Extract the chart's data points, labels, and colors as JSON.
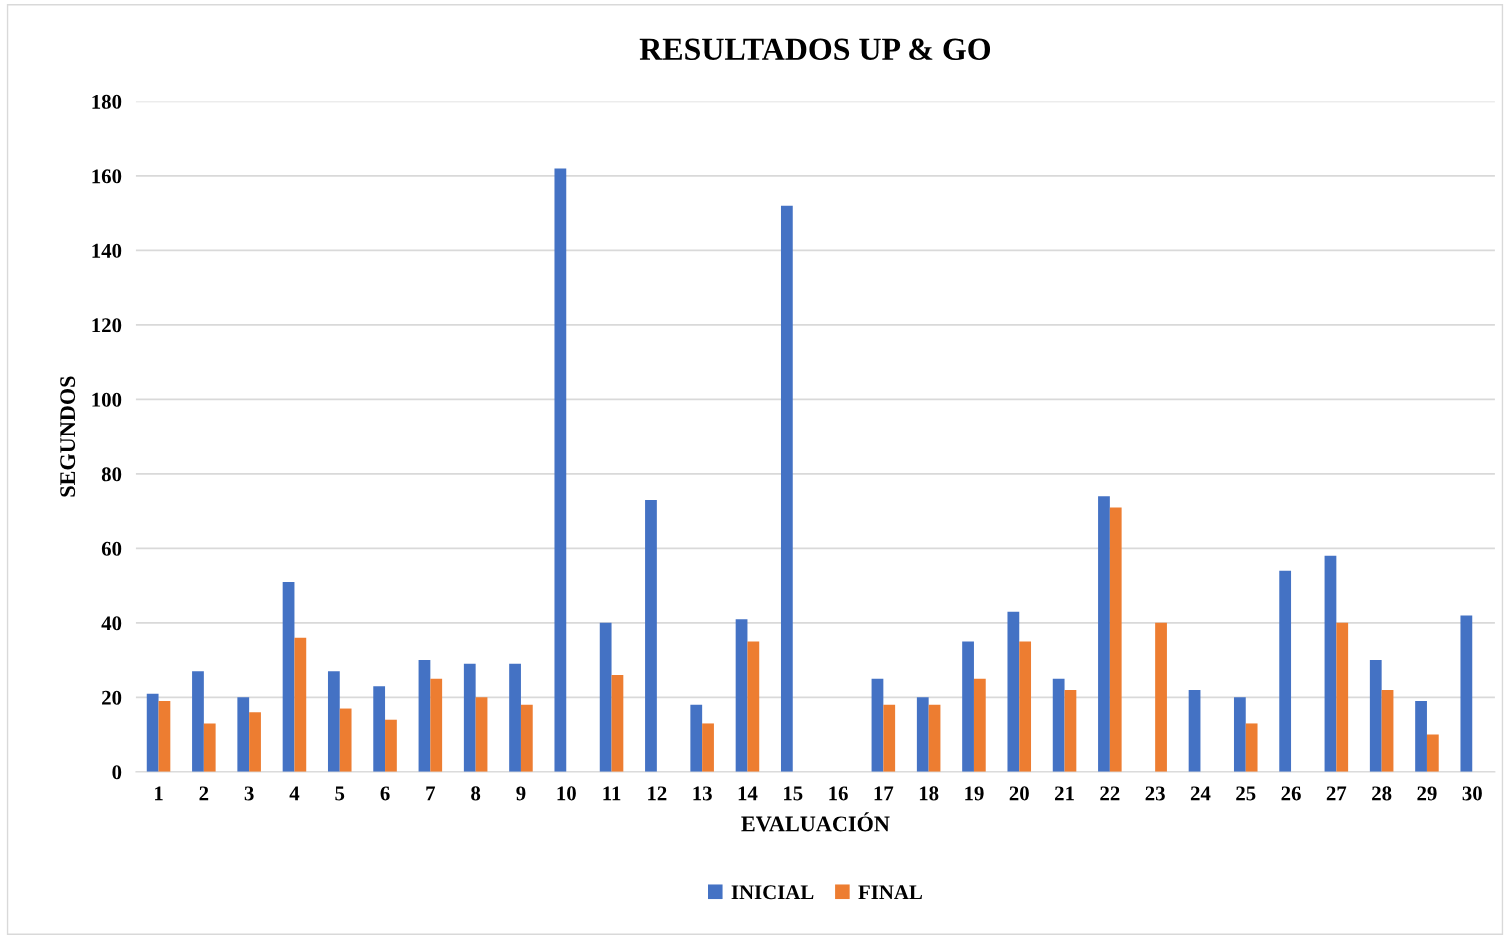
{
  "chart_data": {
    "type": "bar",
    "title": "RESULTADOS UP & GO",
    "xlabel": "EVALUACIÓN",
    "ylabel": "SEGUNDOS",
    "categories": [
      "1",
      "2",
      "3",
      "4",
      "5",
      "6",
      "7",
      "8",
      "9",
      "10",
      "11",
      "12",
      "13",
      "14",
      "15",
      "16",
      "17",
      "18",
      "19",
      "20",
      "21",
      "22",
      "23",
      "24",
      "25",
      "26",
      "27",
      "28",
      "29",
      "30"
    ],
    "series": [
      {
        "name": "INICIAL",
        "color": "#4472c4",
        "values": [
          21,
          27,
          20,
          51,
          27,
          23,
          30,
          29,
          29,
          162,
          40,
          73,
          18,
          41,
          152,
          null,
          25,
          20,
          35,
          43,
          25,
          74,
          null,
          22,
          20,
          54,
          58,
          30,
          19,
          42
        ]
      },
      {
        "name": "FINAL",
        "color": "#ed7d31",
        "values": [
          19,
          13,
          16,
          36,
          17,
          14,
          25,
          20,
          18,
          null,
          26,
          null,
          13,
          35,
          null,
          null,
          18,
          18,
          25,
          35,
          22,
          71,
          40,
          null,
          13,
          null,
          40,
          22,
          10,
          null
        ]
      }
    ],
    "ylim": [
      0,
      180
    ],
    "yticks": [
      0,
      20,
      40,
      60,
      80,
      100,
      120,
      140,
      160,
      180
    ],
    "grid": "y",
    "legend": "bottom"
  }
}
